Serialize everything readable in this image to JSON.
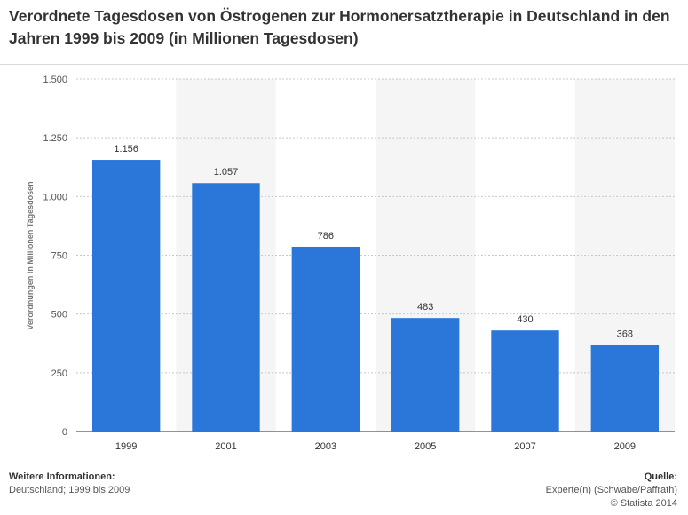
{
  "title": "Verordnete Tagesdosen von Östrogenen zur Hormonersatztherapie in Deutschland in den Jahren 1999 bis 2009 (in Millionen Tagesdosen)",
  "footer": {
    "info_heading": "Weitere Informationen:",
    "info_text": "Deutschland; 1999 bis 2009",
    "source_heading": "Quelle:",
    "source_text": "Experte(n) (Schwabe/Paffrath)",
    "copyright": "© Statista 2014"
  },
  "colors": {
    "bar": "#2a77d9",
    "band": "#f5f5f5",
    "grid": "#c8c8c8",
    "axis": "#555555"
  },
  "chart_data": {
    "type": "bar",
    "categories": [
      "1999",
      "2001",
      "2003",
      "2005",
      "2007",
      "2009"
    ],
    "values": [
      1156,
      1057,
      786,
      483,
      430,
      368
    ],
    "value_labels": [
      "1.156",
      "1.057",
      "786",
      "483",
      "430",
      "368"
    ],
    "ylabel": "Verordnungen in Millionen Tagesdosen",
    "ylim": [
      0,
      1500
    ],
    "yticks": [
      0,
      250,
      500,
      750,
      1000,
      1250,
      1500
    ],
    "ytick_labels": [
      "0",
      "250",
      "500",
      "750",
      "1.000",
      "1.250",
      "1.500"
    ],
    "grid": true,
    "legend": "none"
  }
}
